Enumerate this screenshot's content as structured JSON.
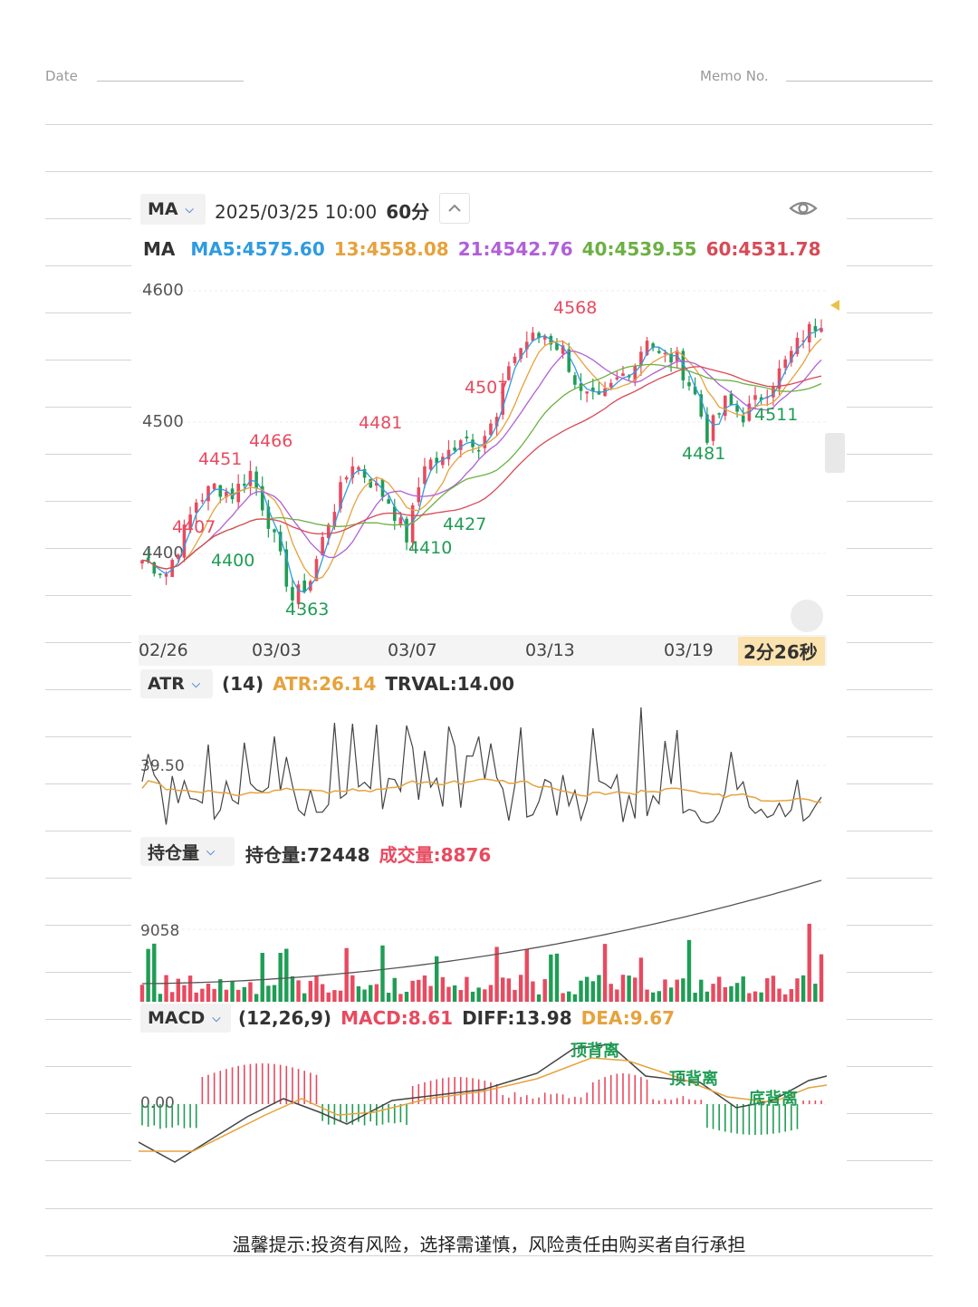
{
  "memo": {
    "date_label": "Date",
    "memo_label": "Memo No."
  },
  "toolbar": {
    "indicator_select": "MA",
    "datetime": "2025/03/25 10:00",
    "period": "60分",
    "eye_icon": "eye-icon",
    "collapse_icon": "chevron-up-icon"
  },
  "ma_line": {
    "label": "MA",
    "items": [
      {
        "text": "MA5:4575.60",
        "color": "#2f9be0"
      },
      {
        "text": "13:4558.08",
        "color": "#e6a23c"
      },
      {
        "text": "21:4542.76",
        "color": "#b060d8"
      },
      {
        "text": "40:4539.55",
        "color": "#6cb043"
      },
      {
        "text": "60:4531.78",
        "color": "#d84a57"
      }
    ]
  },
  "colors": {
    "up": "#e84a5f",
    "down": "#1f9d55",
    "grid": "#ececec",
    "atr_yellow": "#e6a23c",
    "macd_red": "#e84a5f",
    "macd_green": "#1f9d55"
  },
  "price_chart": {
    "y_ticks": [
      "4600",
      "4500",
      "4400"
    ],
    "x_ticks": [
      "02/26",
      "03/03",
      "03/07",
      "03/13",
      "03/19"
    ],
    "countdown": "2分26秒",
    "annotations": [
      {
        "text": "4451",
        "color": "#e84a5f"
      },
      {
        "text": "4466",
        "color": "#e84a5f"
      },
      {
        "text": "4481",
        "color": "#e84a5f"
      },
      {
        "text": "4507",
        "color": "#e84a5f"
      },
      {
        "text": "4568",
        "color": "#e84a5f"
      },
      {
        "text": "4407",
        "color": "#e84a5f"
      },
      {
        "text": "4400",
        "color": "#1f9d55"
      },
      {
        "text": "4363",
        "color": "#1f9d55"
      },
      {
        "text": "4410",
        "color": "#1f9d55"
      },
      {
        "text": "4427",
        "color": "#1f9d55"
      },
      {
        "text": "4481",
        "color": "#1f9d55"
      },
      {
        "text": "4511",
        "color": "#1f9d55"
      }
    ]
  },
  "atr": {
    "select": "ATR",
    "params": "(14)",
    "atr_value": "ATR:26.14",
    "trval": "TRVAL:14.00",
    "y_tick": "39.50"
  },
  "oi": {
    "select": "持仓量",
    "oi_value": "持仓量:72448",
    "volume": "成交量:8876",
    "y_tick": "9058"
  },
  "macd": {
    "select": "MACD",
    "params": "(12,26,9)",
    "macd_value": "MACD:8.61",
    "diff": "DIFF:13.98",
    "dea": "DEA:9.67",
    "y_tick": "0.00",
    "divergence_labels": [
      {
        "text": "顶背离"
      },
      {
        "text": "顶背离"
      },
      {
        "text": "底背离"
      }
    ]
  },
  "footer": {
    "notice": "温馨提示:投资有风险，选择需谨慎，风险责任由购买者自行承担"
  }
}
